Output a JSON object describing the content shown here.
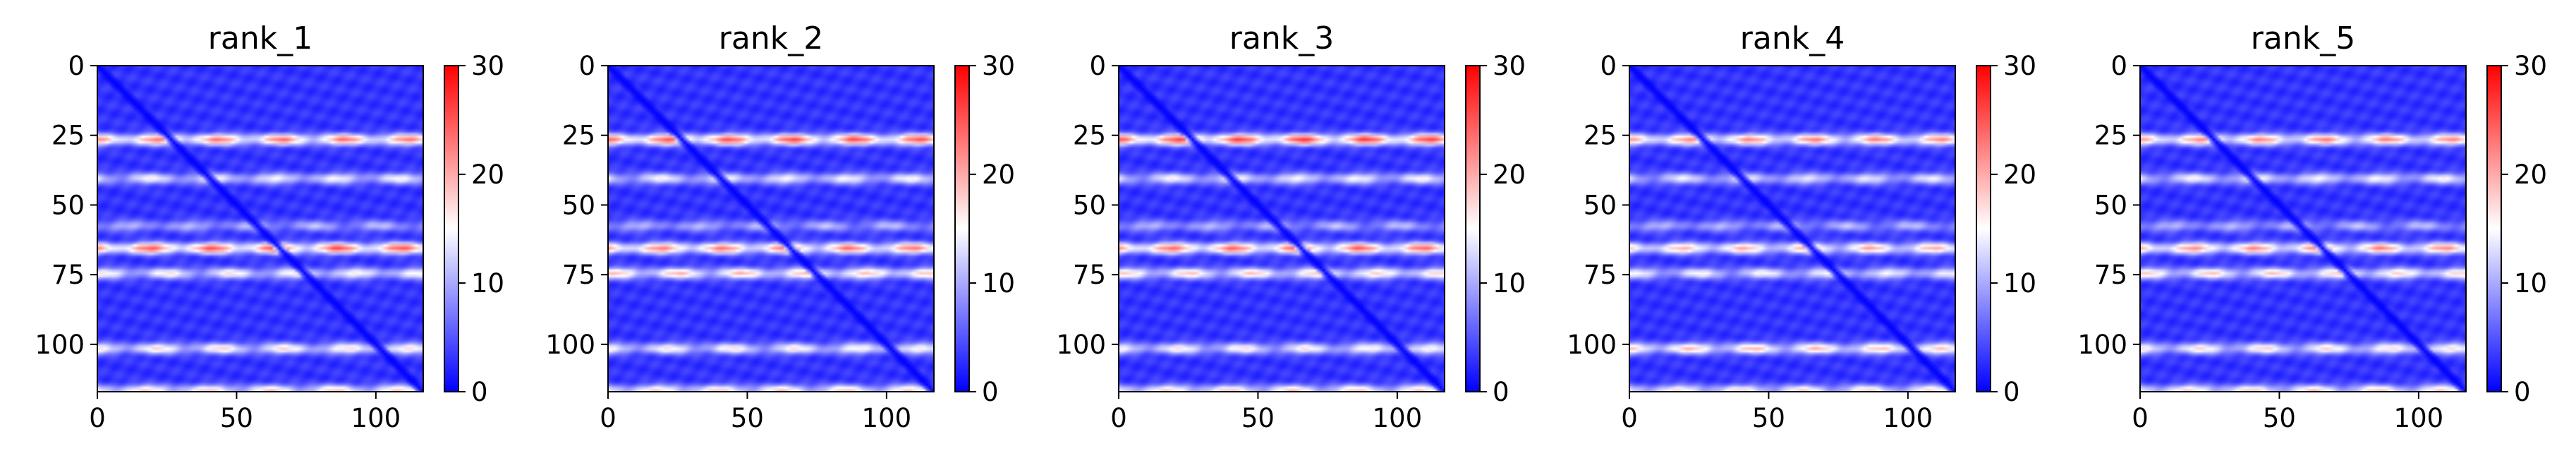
{
  "chart_data": [
    {
      "type": "heatmap",
      "title": "rank_1",
      "xlim": [
        0,
        117
      ],
      "ylim": [
        117,
        0
      ],
      "xticks": [
        0,
        50,
        100
      ],
      "yticks": [
        0,
        25,
        50,
        75,
        100
      ],
      "colorbar": {
        "vmin": 0,
        "vmax": 30,
        "ticks": [
          0,
          10,
          20,
          30
        ],
        "colormap": "bwr"
      },
      "background_value": 3,
      "diagonal": {
        "value": 0,
        "width": 2.2
      },
      "bands": [
        {
          "y": 26,
          "intensity": 23
        },
        {
          "y": 40,
          "intensity": 15
        },
        {
          "y": 57,
          "intensity": 11
        },
        {
          "y": 65,
          "intensity": 25
        },
        {
          "y": 74,
          "intensity": 16
        },
        {
          "y": 101,
          "intensity": 17
        },
        {
          "y": 116,
          "intensity": 18
        }
      ]
    },
    {
      "type": "heatmap",
      "title": "rank_2",
      "xlim": [
        0,
        117
      ],
      "ylim": [
        117,
        0
      ],
      "xticks": [
        0,
        50,
        100
      ],
      "yticks": [
        0,
        25,
        50,
        75,
        100
      ],
      "colorbar": {
        "vmin": 0,
        "vmax": 30,
        "ticks": [
          0,
          10,
          20,
          30
        ],
        "colormap": "bwr"
      },
      "background_value": 3,
      "diagonal": {
        "value": 0,
        "width": 2.2
      },
      "bands": [
        {
          "y": 26,
          "intensity": 25
        },
        {
          "y": 40,
          "intensity": 15
        },
        {
          "y": 57,
          "intensity": 11
        },
        {
          "y": 65,
          "intensity": 23
        },
        {
          "y": 74,
          "intensity": 19
        },
        {
          "y": 101,
          "intensity": 16
        },
        {
          "y": 116,
          "intensity": 18
        }
      ]
    },
    {
      "type": "heatmap",
      "title": "rank_3",
      "xlim": [
        0,
        117
      ],
      "ylim": [
        117,
        0
      ],
      "xticks": [
        0,
        50,
        100
      ],
      "yticks": [
        0,
        25,
        50,
        75,
        100
      ],
      "colorbar": {
        "vmin": 0,
        "vmax": 30,
        "ticks": [
          0,
          10,
          20,
          30
        ],
        "colormap": "bwr"
      },
      "background_value": 3,
      "diagonal": {
        "value": 0,
        "width": 2.2
      },
      "bands": [
        {
          "y": 26,
          "intensity": 26
        },
        {
          "y": 40,
          "intensity": 15
        },
        {
          "y": 57,
          "intensity": 11
        },
        {
          "y": 65,
          "intensity": 24
        },
        {
          "y": 74,
          "intensity": 18
        },
        {
          "y": 101,
          "intensity": 16
        },
        {
          "y": 116,
          "intensity": 18
        }
      ]
    },
    {
      "type": "heatmap",
      "title": "rank_4",
      "xlim": [
        0,
        117
      ],
      "ylim": [
        117,
        0
      ],
      "xticks": [
        0,
        50,
        100
      ],
      "yticks": [
        0,
        25,
        50,
        75,
        100
      ],
      "colorbar": {
        "vmin": 0,
        "vmax": 30,
        "ticks": [
          0,
          10,
          20,
          30
        ],
        "colormap": "bwr"
      },
      "background_value": 3,
      "diagonal": {
        "value": 0,
        "width": 2.2
      },
      "bands": [
        {
          "y": 26,
          "intensity": 22
        },
        {
          "y": 40,
          "intensity": 14
        },
        {
          "y": 57,
          "intensity": 11
        },
        {
          "y": 65,
          "intensity": 20
        },
        {
          "y": 74,
          "intensity": 15
        },
        {
          "y": 101,
          "intensity": 19
        },
        {
          "y": 116,
          "intensity": 17
        }
      ]
    },
    {
      "type": "heatmap",
      "title": "rank_5",
      "xlim": [
        0,
        117
      ],
      "ylim": [
        117,
        0
      ],
      "xticks": [
        0,
        50,
        100
      ],
      "yticks": [
        0,
        25,
        50,
        75,
        100
      ],
      "colorbar": {
        "vmin": 0,
        "vmax": 30,
        "ticks": [
          0,
          10,
          20,
          30
        ],
        "colormap": "bwr"
      },
      "background_value": 3,
      "diagonal": {
        "value": 0,
        "width": 2.2
      },
      "bands": [
        {
          "y": 26,
          "intensity": 22
        },
        {
          "y": 40,
          "intensity": 15
        },
        {
          "y": 57,
          "intensity": 11
        },
        {
          "y": 65,
          "intensity": 22
        },
        {
          "y": 74,
          "intensity": 18
        },
        {
          "y": 101,
          "intensity": 17
        },
        {
          "y": 116,
          "intensity": 18
        }
      ]
    }
  ]
}
